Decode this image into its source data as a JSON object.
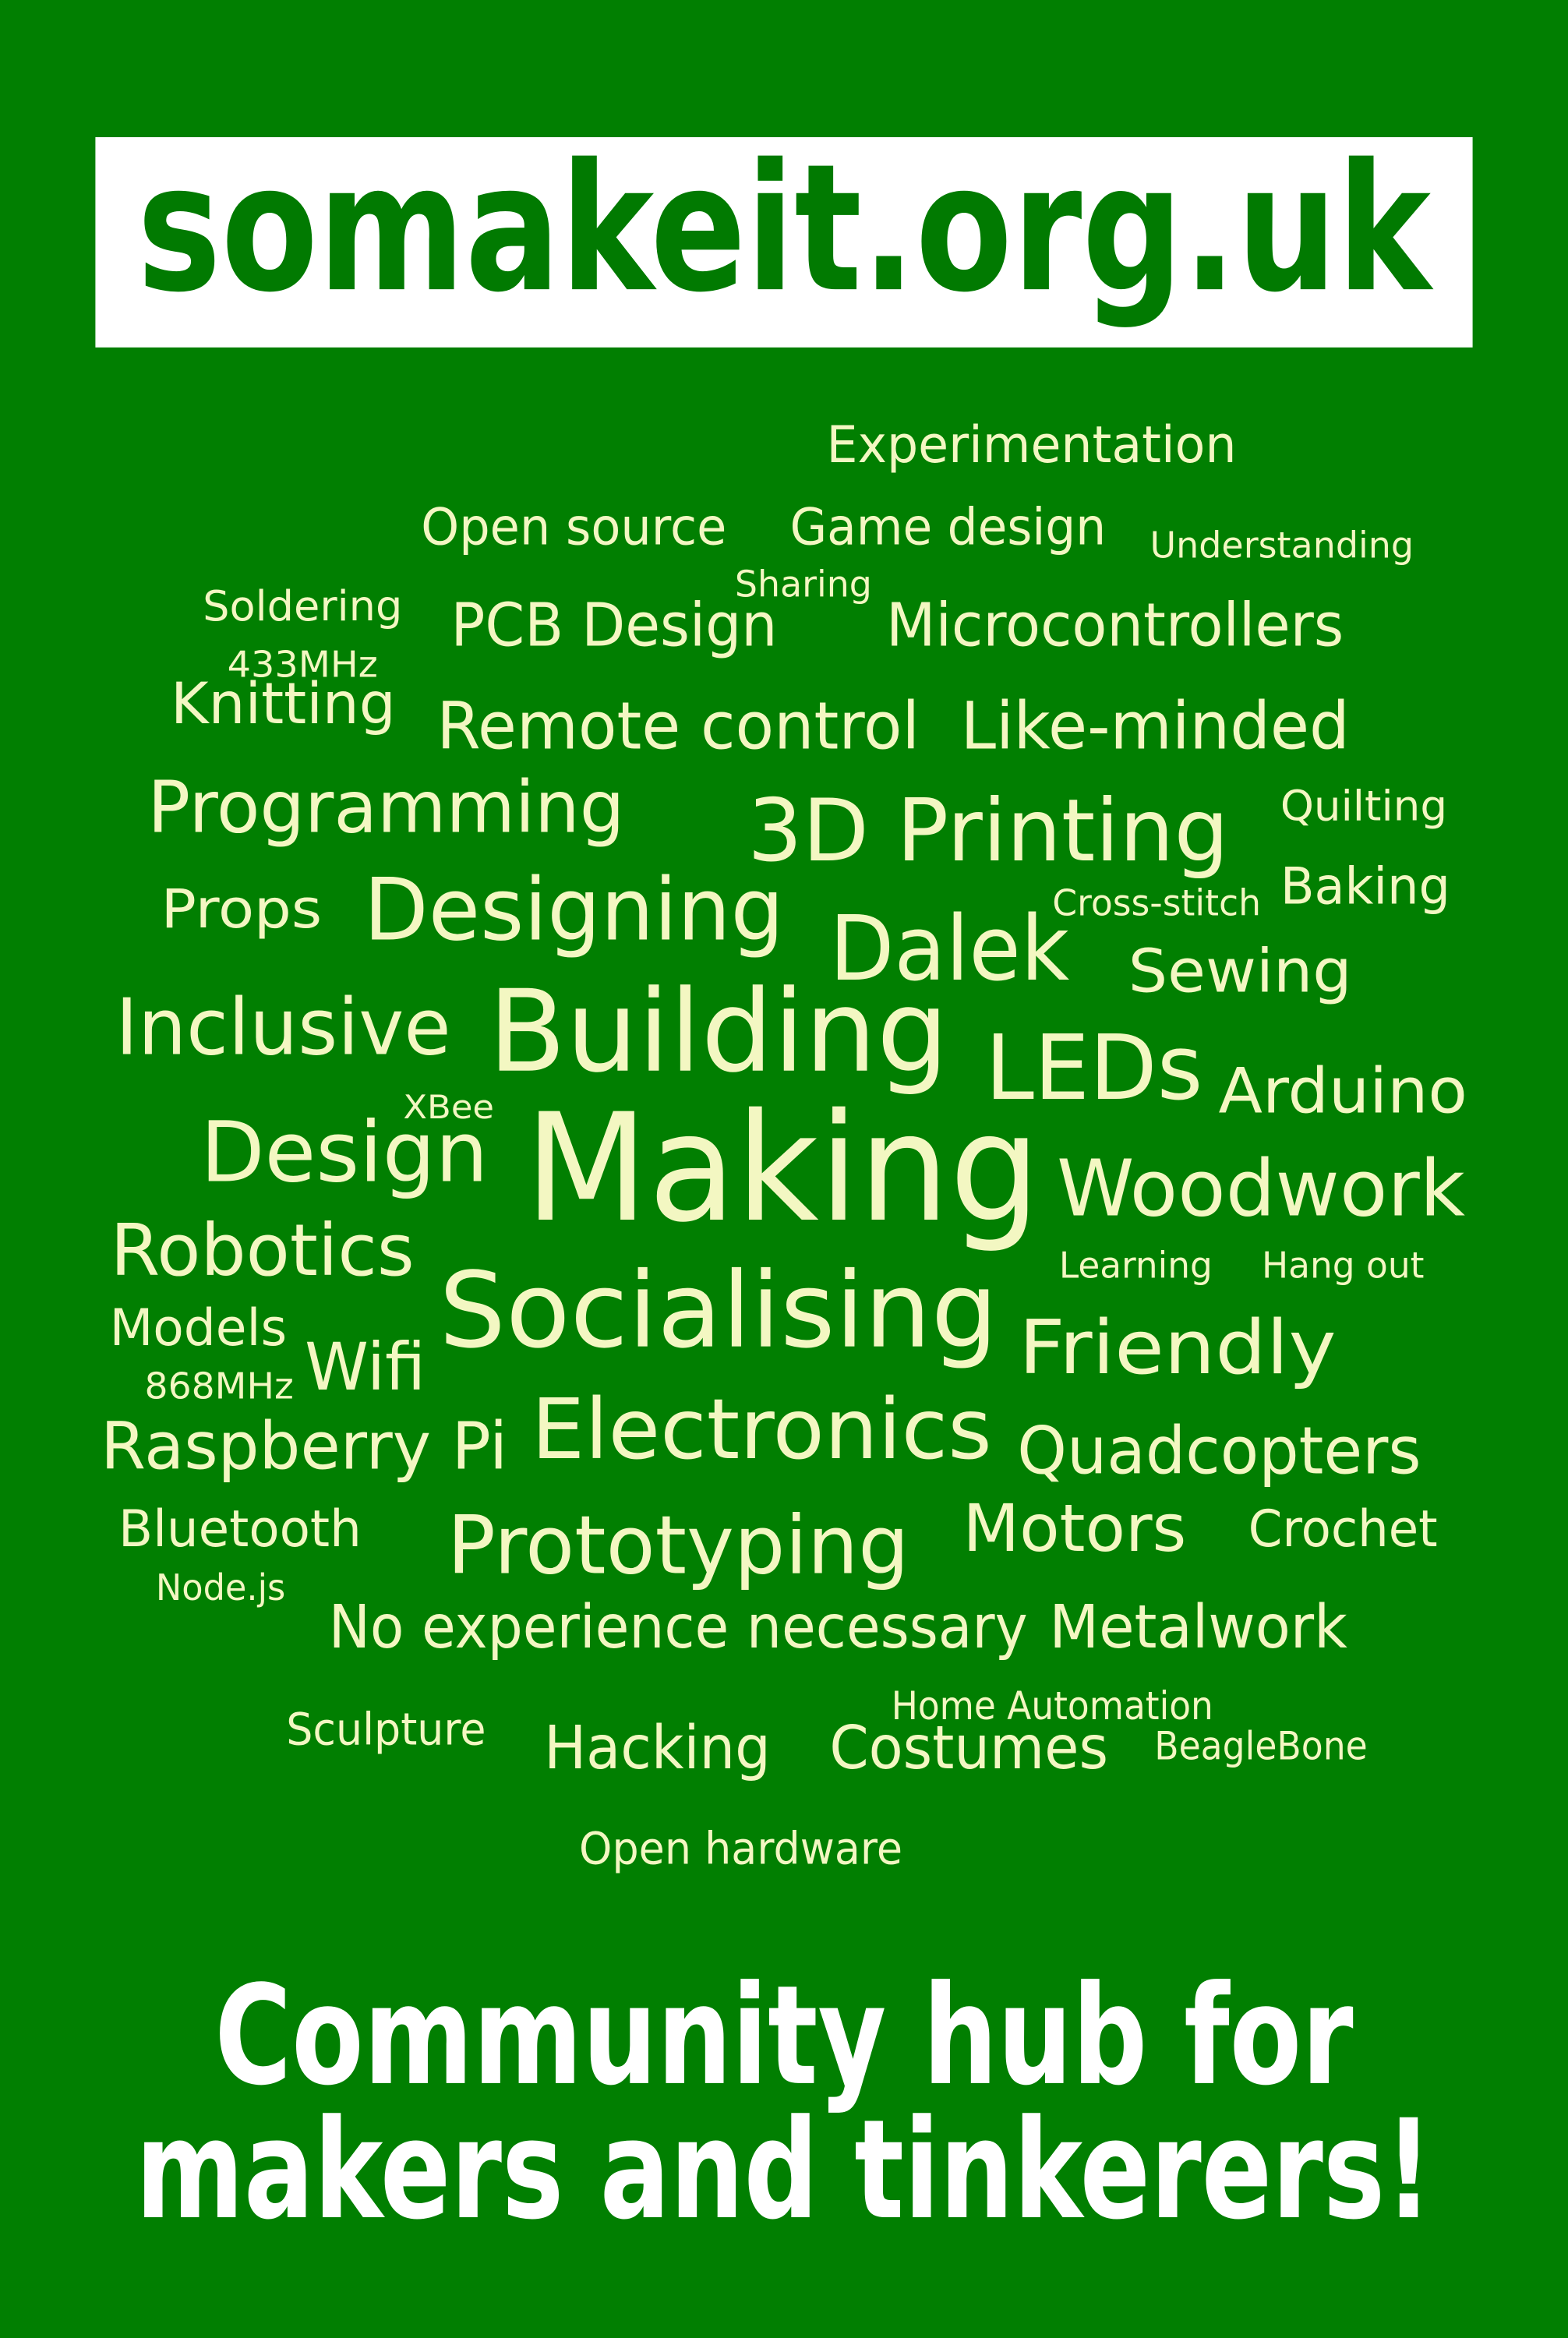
{
  "header": {
    "title": "somakeit.org.uk"
  },
  "words": [
    "Experimentation",
    "Open source",
    "Game design",
    "Understanding",
    "Sharing",
    "Soldering",
    "PCB Design",
    "Microcontrollers",
    "433MHz",
    "Knitting",
    "Remote control",
    "Like-minded",
    "Programming",
    "3D Printing",
    "Quilting",
    "Props",
    "Designing",
    "Cross-stitch",
    "Baking",
    "Dalek",
    "Sewing",
    "Inclusive",
    "Building",
    "LEDs",
    "Arduino",
    "XBee",
    "Design",
    "Making",
    "Woodwork",
    "Robotics",
    "Learning",
    "Hang out",
    "Socialising",
    "Models",
    "Friendly",
    "Wifi",
    "868MHz",
    "Raspberry Pi",
    "Electronics",
    "Quadcopters",
    "Bluetooth",
    "Prototyping",
    "Motors",
    "Crochet",
    "Node.js",
    "No experience necessary",
    "Metalwork",
    "Home Automation",
    "Sculpture",
    "Hacking",
    "Costumes",
    "BeagleBone",
    "Open hardware"
  ],
  "tagline": [
    "Community hub for",
    "makers and tinkerers!"
  ]
}
